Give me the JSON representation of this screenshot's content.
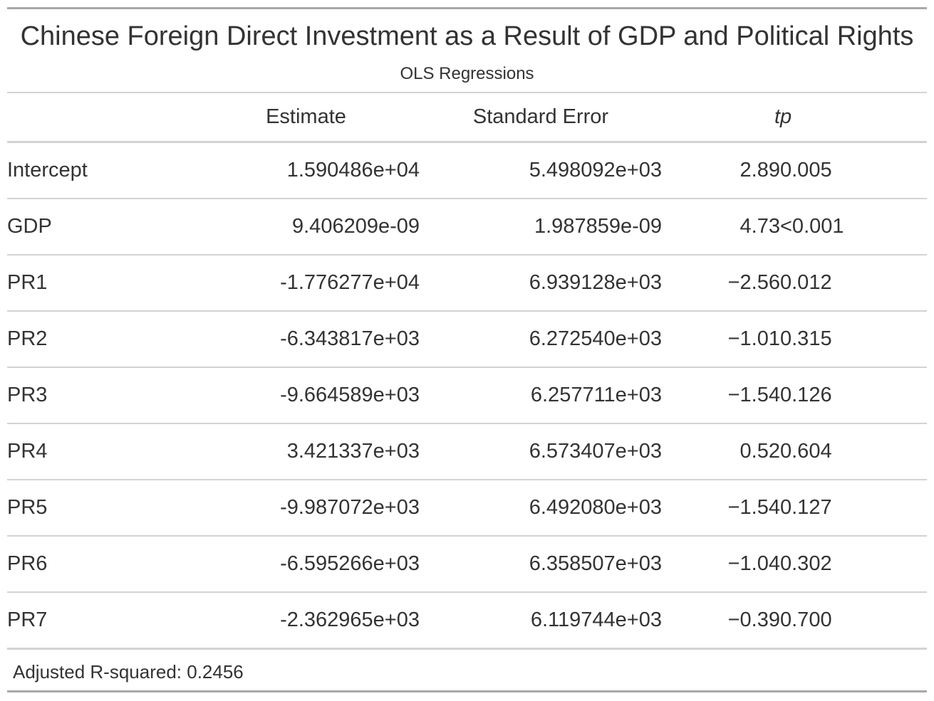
{
  "title": "Chinese Foreign Direct Investment as a Result of GDP and Political Rights",
  "subtitle": "OLS Regressions",
  "columns": {
    "label": "",
    "estimate": "Estimate",
    "std_error": "Standard Error",
    "t": "t",
    "p": "p"
  },
  "rows": [
    {
      "term": "Intercept",
      "estimate": "1.590486e+04",
      "std_error": "5.498092e+03",
      "t": "2.89",
      "p": "0.005"
    },
    {
      "term": "GDP",
      "estimate": "9.406209e-09",
      "std_error": "1.987859e-09",
      "t": "4.73",
      "p": "<0.001"
    },
    {
      "term": "PR1",
      "estimate": "-1.776277e+04",
      "std_error": "6.939128e+03",
      "t": "−2.56",
      "p": "0.012"
    },
    {
      "term": "PR2",
      "estimate": "-6.343817e+03",
      "std_error": "6.272540e+03",
      "t": "−1.01",
      "p": "0.315"
    },
    {
      "term": "PR3",
      "estimate": "-9.664589e+03",
      "std_error": "6.257711e+03",
      "t": "−1.54",
      "p": "0.126"
    },
    {
      "term": "PR4",
      "estimate": "3.421337e+03",
      "std_error": "6.573407e+03",
      "t": "0.52",
      "p": "0.604"
    },
    {
      "term": "PR5",
      "estimate": "-9.987072e+03",
      "std_error": "6.492080e+03",
      "t": "−1.54",
      "p": "0.127"
    },
    {
      "term": "PR6",
      "estimate": "-6.595266e+03",
      "std_error": "6.358507e+03",
      "t": "−1.04",
      "p": "0.302"
    },
    {
      "term": "PR7",
      "estimate": "-2.362965e+03",
      "std_error": "6.119744e+03",
      "t": "−0.39",
      "p": "0.700"
    }
  ],
  "footnote": "Adjusted R-squared: 0.2456",
  "colors": {
    "text": "#333333",
    "outer_rule": "#a8a8a8",
    "inner_rule": "#d3d3d3",
    "background": "#ffffff"
  }
}
